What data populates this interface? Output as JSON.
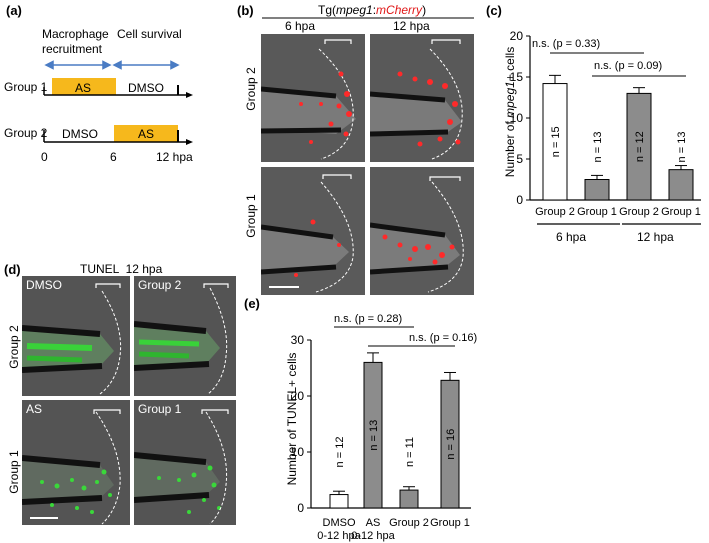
{
  "panel_a": {
    "label": "(a)",
    "phase1": "Macrophage",
    "phase1b": "recruitment",
    "phase2": "Cell survival",
    "group1": "Group 1",
    "group2": "Group 2",
    "as_label": "AS",
    "dmso_label": "DMSO",
    "ticks": [
      "0",
      "6",
      "12 hpa"
    ]
  },
  "panel_b": {
    "label": "(b)",
    "title_prefix": "Tg(",
    "title_gene": "mpeg1",
    "title_colon": ":",
    "title_reporter": "mCherry",
    "title_suffix": ")",
    "col1": "6 hpa",
    "col2": "12 hpa",
    "row1": "Group 2",
    "row2": "Group 1"
  },
  "panel_d": {
    "label": "(d)",
    "title": "TUNEL  12 hpa",
    "row1": "Group 2",
    "row2": "Group 1",
    "img_dmso": "DMSO",
    "img_group2": "Group 2",
    "img_as": "AS",
    "img_group1": "Group 1"
  },
  "panel_c": {
    "label": "(c)",
    "ylabel_prefix": "Number of ",
    "ylabel_italic": "mpeg1",
    "ylabel_suffix": "+ cells",
    "sig1": "n.s. (p = 0.33)",
    "sig2": "n.s. (p = 0.09)",
    "group_6": "6 hpa",
    "group_12": "12 hpa"
  },
  "panel_e": {
    "label": "(e)",
    "ylabel": "Number of TUNEL+ cells",
    "sig1": "n.s. (p = 0.28)",
    "sig2": "n.s. (p = 0.16)"
  },
  "chart_data": [
    {
      "id": "c",
      "type": "bar",
      "categories": [
        "Group 2",
        "Group 1",
        "Group 2",
        "Group 1"
      ],
      "values": [
        14.2,
        2.5,
        13.0,
        3.7
      ],
      "errors": [
        1.0,
        0.5,
        0.7,
        0.5
      ],
      "n_labels": [
        "n = 15",
        "n = 13",
        "n = 12",
        "n = 13"
      ],
      "fills": [
        "#ffffff",
        "#8c8c8c",
        "#8c8c8c",
        "#8c8c8c"
      ],
      "group_labels": [
        "6 hpa",
        "12 hpa"
      ],
      "ylim": [
        0,
        20
      ],
      "yticks": [
        "0",
        "5",
        "10",
        "15",
        "20"
      ]
    },
    {
      "id": "e",
      "type": "bar",
      "categories": [
        "DMSO\n0-12 hpa",
        "AS\n0-12 hpa",
        "Group 2",
        "Group 1"
      ],
      "values": [
        2.4,
        26.0,
        3.2,
        22.8
      ],
      "errors": [
        0.6,
        1.7,
        0.6,
        1.4
      ],
      "n_labels": [
        "n = 12",
        "n = 13",
        "n = 11",
        "n = 16"
      ],
      "fills": [
        "#ffffff",
        "#8c8c8c",
        "#8c8c8c",
        "#8c8c8c"
      ],
      "ylim": [
        0,
        30
      ],
      "yticks": [
        "0",
        "10",
        "20",
        "30"
      ]
    }
  ]
}
